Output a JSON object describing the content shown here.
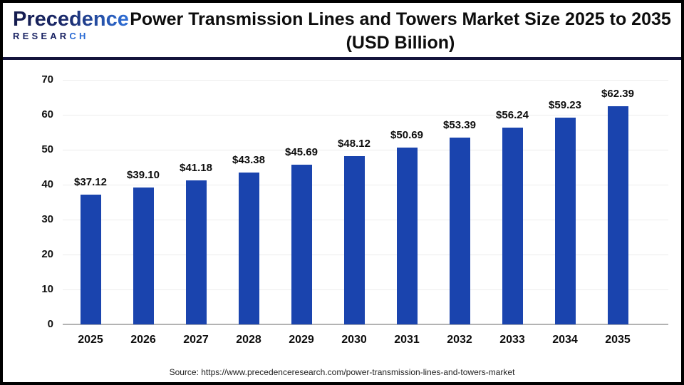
{
  "header": {
    "logo": {
      "script": "Precedence",
      "research_dark": "RESEAR",
      "research_blue": "CH"
    },
    "title_line1": "Power Transmission Lines and Towers Market Size 2025 to 2035",
    "title_line2": "(USD Billion)"
  },
  "footer": {
    "source": "Source: https://www.precedenceresearch.com/power-transmission-lines-and-towers-market"
  },
  "colors": {
    "bar": "#1a44ae",
    "header_rule": "#14143c",
    "gridline": "#ececec",
    "axis_line": "#b3b3b3",
    "logo_dark": "#1b2464",
    "logo_blue": "#2b6bd4"
  },
  "chart_data": {
    "type": "bar",
    "title": "Power Transmission Lines and Towers Market Size 2025 to 2035 (USD Billion)",
    "categories": [
      "2025",
      "2026",
      "2027",
      "2028",
      "2029",
      "2030",
      "2031",
      "2032",
      "2033",
      "2034",
      "2035"
    ],
    "values": [
      37.12,
      39.1,
      41.18,
      43.38,
      45.69,
      48.12,
      50.69,
      53.39,
      56.24,
      59.23,
      62.39
    ],
    "value_labels": [
      "$37.12",
      "$39.10",
      "$41.18",
      "$43.38",
      "$45.69",
      "$48.12",
      "$50.69",
      "$53.39",
      "$56.24",
      "$59.23",
      "$62.39"
    ],
    "xlabel": "",
    "ylabel": "",
    "ylim": [
      0,
      70
    ],
    "yticks": [
      0,
      10,
      20,
      30,
      40,
      50,
      60,
      70
    ],
    "grid": true,
    "legend": false
  }
}
